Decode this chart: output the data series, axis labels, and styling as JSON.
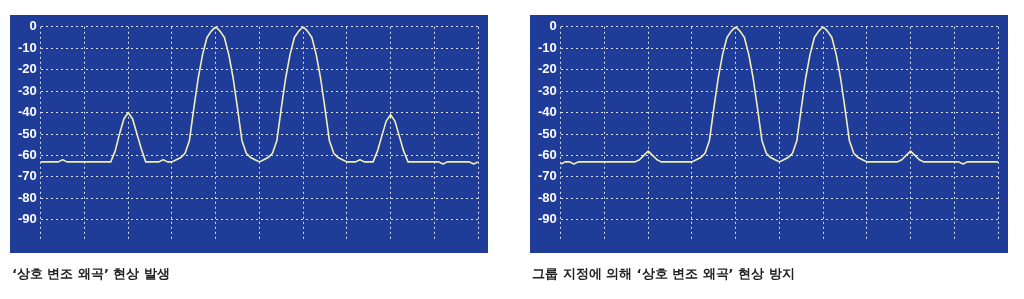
{
  "chart_data": [
    {
      "type": "line",
      "title": "‘상호 변조 왜곡’ 현상 발생",
      "categories": [
        null,
        null,
        null,
        null,
        null,
        null,
        null,
        null,
        null,
        null,
        null,
        null,
        null,
        null,
        null,
        null,
        null,
        null,
        null,
        null,
        null,
        null,
        null,
        null,
        null,
        null,
        null,
        null,
        null,
        null,
        null,
        null,
        null,
        null,
        null,
        null,
        null,
        null,
        null,
        null,
        null,
        null,
        null,
        null,
        null,
        null,
        null,
        null,
        null,
        null,
        null,
        null,
        null,
        null,
        null,
        null,
        null,
        null,
        null,
        null,
        null,
        null,
        null,
        null,
        null,
        null,
        null,
        null,
        null,
        null,
        null,
        null,
        null,
        null,
        null,
        null,
        null,
        null,
        null,
        null,
        null,
        null,
        null,
        null,
        null,
        null,
        null,
        null,
        null,
        null,
        null,
        null,
        null,
        null,
        null,
        null,
        null,
        null,
        null,
        null,
        null
      ],
      "series": [
        {
          "color": "#f3efb4",
          "values": [
            -63,
            -63,
            -63,
            -63,
            -63,
            -62,
            -63,
            -63,
            -63,
            -63,
            -63,
            -63,
            -63,
            -63,
            -63,
            -63,
            -63,
            -58,
            -50,
            -43,
            -40,
            -43,
            -50,
            -57,
            -63,
            -63,
            -63,
            -63,
            -62,
            -63,
            -63,
            -62,
            -61,
            -59,
            -53,
            -38,
            -24,
            -13,
            -5,
            -2,
            0,
            -2,
            -5,
            -13,
            -24,
            -38,
            -53,
            -59,
            -61,
            -62,
            -63,
            -62,
            -61,
            -59,
            -53,
            -38,
            -24,
            -13,
            -5,
            -2,
            0,
            -2,
            -5,
            -13,
            -24,
            -38,
            -53,
            -59,
            -61,
            -62,
            -63,
            -63,
            -63,
            -62,
            -63,
            -63,
            -63,
            -58,
            -51,
            -44,
            -41,
            -44,
            -51,
            -58,
            -63,
            -63,
            -63,
            -63,
            -63,
            -63,
            -63,
            -63,
            -64,
            -63,
            -63,
            -63,
            -63,
            -63,
            -63,
            -64,
            -63
          ]
        }
      ],
      "ylim": [
        -100,
        0
      ],
      "yticks": [
        0,
        -10,
        -20,
        -30,
        -40,
        -50,
        -60,
        -70,
        -80,
        -90
      ],
      "grid": true,
      "legend": false,
      "marker": "none",
      "line_style": "solid",
      "tick_labels": "y"
    },
    {
      "type": "line",
      "title": "그룹 지정에 의해 ‘상호 변조 왜곡’ 현상 방지",
      "categories": [
        null,
        null,
        null,
        null,
        null,
        null,
        null,
        null,
        null,
        null,
        null,
        null,
        null,
        null,
        null,
        null,
        null,
        null,
        null,
        null,
        null,
        null,
        null,
        null,
        null,
        null,
        null,
        null,
        null,
        null,
        null,
        null,
        null,
        null,
        null,
        null,
        null,
        null,
        null,
        null,
        null,
        null,
        null,
        null,
        null,
        null,
        null,
        null,
        null,
        null,
        null,
        null,
        null,
        null,
        null,
        null,
        null,
        null,
        null,
        null,
        null,
        null,
        null,
        null,
        null,
        null,
        null,
        null,
        null,
        null,
        null,
        null,
        null,
        null,
        null,
        null,
        null,
        null,
        null,
        null,
        null,
        null,
        null,
        null,
        null,
        null,
        null,
        null,
        null,
        null,
        null,
        null,
        null,
        null,
        null,
        null,
        null,
        null,
        null,
        null,
        null
      ],
      "series": [
        {
          "color": "#f3efb4",
          "values": [
            -64,
            -63,
            -63,
            -64,
            -63,
            -63,
            -63,
            -63,
            -63,
            -63,
            -63,
            -63,
            -63,
            -63,
            -63,
            -63,
            -63,
            -63,
            -62,
            -60,
            -58,
            -60,
            -62,
            -63,
            -63,
            -63,
            -63,
            -63,
            -63,
            -63,
            -63,
            -62,
            -61,
            -59,
            -53,
            -38,
            -24,
            -13,
            -5,
            -2,
            0,
            -2,
            -5,
            -13,
            -24,
            -38,
            -53,
            -59,
            -61,
            -62,
            -63,
            -62,
            -61,
            -59,
            -53,
            -38,
            -24,
            -13,
            -5,
            -2,
            0,
            -2,
            -5,
            -13,
            -24,
            -38,
            -53,
            -59,
            -61,
            -62,
            -63,
            -63,
            -63,
            -63,
            -63,
            -63,
            -63,
            -63,
            -62,
            -60,
            -58,
            -60,
            -62,
            -63,
            -63,
            -63,
            -63,
            -63,
            -63,
            -63,
            -63,
            -63,
            -64,
            -63,
            -63,
            -63,
            -63,
            -63,
            -63,
            -63,
            -63
          ]
        }
      ],
      "ylim": [
        -100,
        0
      ],
      "yticks": [
        0,
        -10,
        -20,
        -30,
        -40,
        -50,
        -60,
        -70,
        -80,
        -90
      ],
      "grid": true,
      "legend": false,
      "marker": "none",
      "line_style": "solid",
      "tick_labels": "y"
    }
  ]
}
